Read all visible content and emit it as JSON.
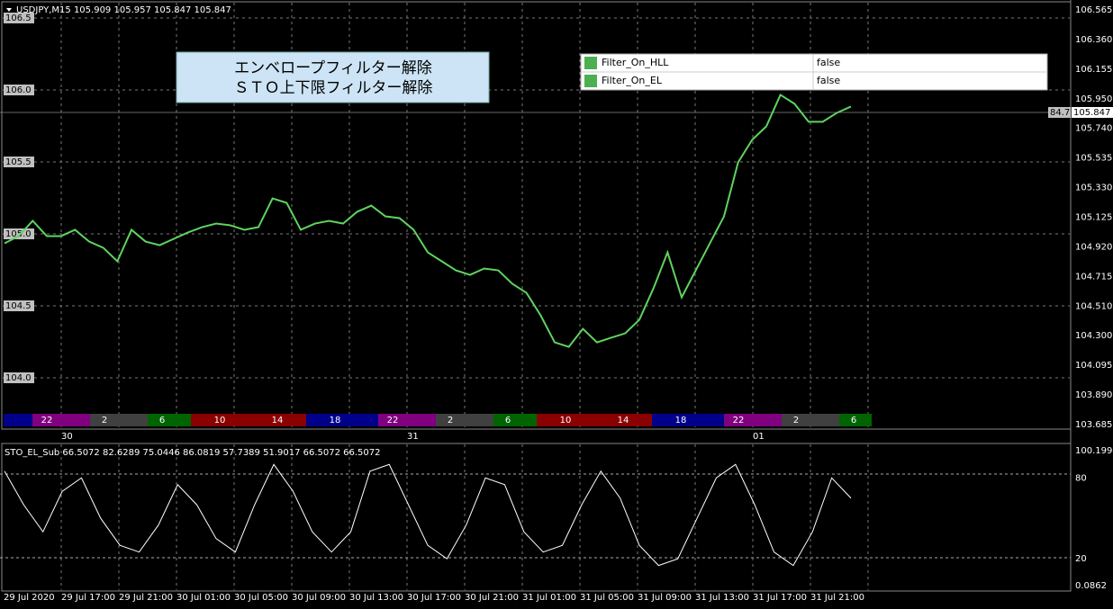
{
  "header": "USDJPY,M15  105.909 105.957 105.847 105.847",
  "note": [
    "エンベロープフィルター解除",
    "ＳＴＯ上下限フィルター解除"
  ],
  "params": [
    {
      "name": "Filter_On_HLL",
      "value": "false"
    },
    {
      "name": "Filter_On_EL",
      "value": "false"
    }
  ],
  "left_price_labels": [
    "106.5",
    "106.0",
    "105.5",
    "105.0",
    "104.5",
    "104.0"
  ],
  "right_price_labels": [
    "106.565",
    "106.360",
    "106.155",
    "105.950",
    "105.740",
    "105.535",
    "105.330",
    "105.125",
    "104.920",
    "104.715",
    "104.510",
    "104.300",
    "104.095",
    "103.890",
    "103.685"
  ],
  "current_price": "105.847",
  "current_sub": "84.7",
  "price_ylim": [
    103.685,
    106.565
  ],
  "price_series": [
    104.944,
    104.994,
    105.1,
    104.994,
    104.994,
    105.038,
    104.956,
    104.913,
    104.819,
    105.038,
    104.956,
    104.931,
    104.975,
    105.019,
    105.056,
    105.081,
    105.069,
    105.038,
    105.056,
    105.256,
    105.225,
    105.038,
    105.081,
    105.1,
    105.081,
    105.163,
    105.206,
    105.131,
    105.119,
    105.038,
    104.881,
    104.819,
    104.756,
    104.725,
    104.769,
    104.756,
    104.663,
    104.6,
    104.444,
    104.256,
    104.225,
    104.35,
    104.256,
    104.288,
    104.319,
    104.413,
    104.631,
    104.881,
    104.569,
    104.756,
    104.944,
    105.131,
    105.506,
    105.663,
    105.756,
    105.975,
    105.913,
    105.788,
    105.788,
    105.85,
    105.894
  ],
  "sessions": [
    "22",
    "2",
    "6",
    "10",
    "14",
    "18",
    "22",
    "2",
    "6",
    "10",
    "14",
    "18",
    "22",
    "2",
    "6"
  ],
  "day_labels": [
    "30",
    "31",
    "01"
  ],
  "sub_header": "STO_EL_Sub 66.5072 82.6289 75.0446 86.0819 57.7389 51.9017 66.5072 66.5072",
  "sub_labels": [
    "100.1994",
    "80",
    "20",
    "0.0862"
  ],
  "sub_ylim": [
    0.0862,
    100.1994
  ],
  "sto_series": [
    85,
    60,
    40,
    70,
    80,
    50,
    30,
    25,
    45,
    75,
    60,
    35,
    25,
    60,
    90,
    70,
    40,
    25,
    40,
    85,
    90,
    60,
    30,
    20,
    45,
    80,
    75,
    40,
    25,
    30,
    60,
    85,
    65,
    30,
    15,
    20,
    50,
    80,
    90,
    60,
    25,
    15,
    40,
    80,
    65
  ],
  "time_labels": [
    "29 Jul 2020",
    "29 Jul 17:00",
    "29 Jul 21:00",
    "30 Jul 01:00",
    "30 Jul 05:00",
    "30 Jul 09:00",
    "30 Jul 13:00",
    "30 Jul 17:00",
    "30 Jul 21:00",
    "31 Jul 01:00",
    "31 Jul 05:00",
    "31 Jul 09:00",
    "31 Jul 13:00",
    "31 Jul 17:00",
    "31 Jul 21:00"
  ]
}
